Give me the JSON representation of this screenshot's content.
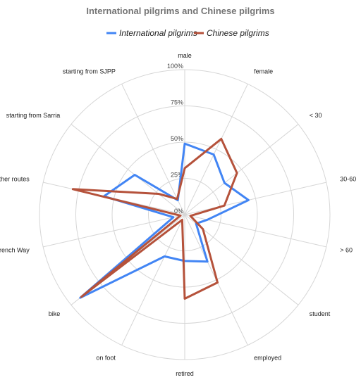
{
  "chart_data": {
    "type": "radar",
    "title": "International pilgrims and Chinese pilgrims",
    "axes": [
      "male",
      "female",
      "< 30",
      "30-60",
      "> 60",
      "student",
      "employed",
      "retired",
      "on foot",
      "bike",
      "the French Way",
      "other routes",
      "starting from Sarria",
      "starting from SJPP"
    ],
    "ticks": [
      "0%",
      "25%",
      "50%",
      "75%",
      "100%"
    ],
    "rlim": [
      0,
      100
    ],
    "legend_position": "top",
    "series": [
      {
        "name": "International pilgrims",
        "color": "#4285f4",
        "values": [
          49,
          46,
          35,
          45,
          16,
          10,
          36,
          32,
          32,
          92,
          8,
          57,
          44,
          11
        ]
      },
      {
        "name": "Chinese pilgrims",
        "color": "#b5523b",
        "values": [
          32,
          58,
          46,
          28,
          4,
          16,
          52,
          58,
          4,
          91,
          3,
          79,
          23,
          12
        ]
      }
    ]
  },
  "colors": {
    "international": "#4285f4",
    "chinese": "#b5523b",
    "grid": "#d6d6d6"
  }
}
